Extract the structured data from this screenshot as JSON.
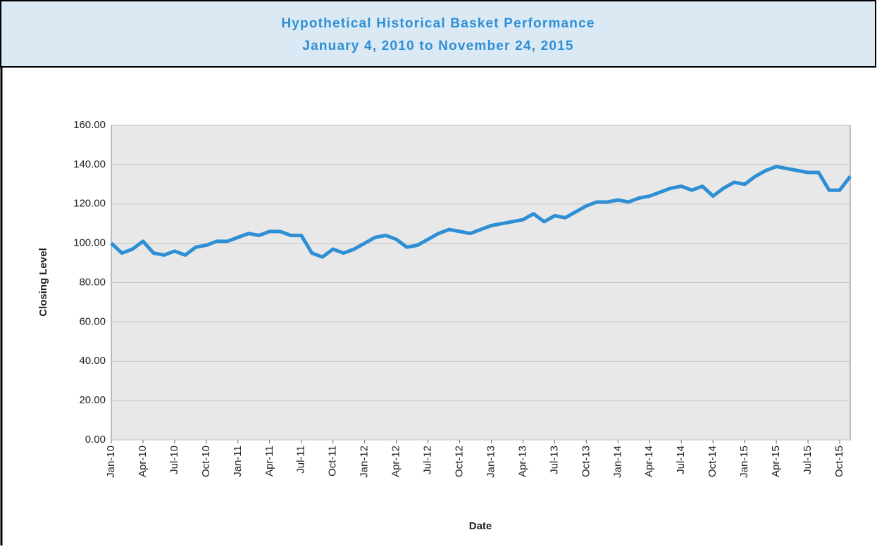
{
  "chart_data": {
    "type": "line",
    "title": "Hypothetical Historical Basket Performance",
    "subtitle": "January 4, 2010 to November 24, 2015",
    "x_label": "Date",
    "y_label": "Closing Level",
    "x": [
      "2010-01",
      "2010-02",
      "2010-03",
      "2010-04",
      "2010-05",
      "2010-06",
      "2010-07",
      "2010-08",
      "2010-09",
      "2010-10",
      "2010-11",
      "2010-12",
      "2011-01",
      "2011-02",
      "2011-03",
      "2011-04",
      "2011-05",
      "2011-06",
      "2011-07",
      "2011-08",
      "2011-09",
      "2011-10",
      "2011-11",
      "2011-12",
      "2012-01",
      "2012-02",
      "2012-03",
      "2012-04",
      "2012-05",
      "2012-06",
      "2012-07",
      "2012-08",
      "2012-09",
      "2012-10",
      "2012-11",
      "2012-12",
      "2013-01",
      "2013-02",
      "2013-03",
      "2013-04",
      "2013-05",
      "2013-06",
      "2013-07",
      "2013-08",
      "2013-09",
      "2013-10",
      "2013-11",
      "2013-12",
      "2014-01",
      "2014-02",
      "2014-03",
      "2014-04",
      "2014-05",
      "2014-06",
      "2014-07",
      "2014-08",
      "2014-09",
      "2014-10",
      "2014-11",
      "2014-12",
      "2015-01",
      "2015-02",
      "2015-03",
      "2015-04",
      "2015-05",
      "2015-06",
      "2015-07",
      "2015-08",
      "2015-09",
      "2015-10",
      "2015-11"
    ],
    "series": [
      {
        "name": "Basket",
        "color": "#2e8fd5",
        "values": [
          100,
          95,
          97,
          101,
          95,
          94,
          96,
          94,
          98,
          99,
          101,
          101,
          103,
          105,
          104,
          106,
          106,
          104,
          104,
          95,
          93,
          97,
          95,
          97,
          100,
          103,
          104,
          102,
          98,
          99,
          102,
          105,
          107,
          106,
          105,
          107,
          109,
          110,
          111,
          112,
          115,
          111,
          114,
          113,
          116,
          119,
          121,
          121,
          122,
          121,
          123,
          124,
          126,
          128,
          129,
          127,
          129,
          124,
          128,
          131,
          130,
          134,
          137,
          139,
          138,
          137,
          136,
          136,
          127,
          127,
          134
        ]
      }
    ],
    "xlim": [
      "2010-01",
      "2015-11"
    ],
    "xticks": [
      {
        "value": "2010-01",
        "label": "Jan-10"
      },
      {
        "value": "2010-04",
        "label": "Apr-10"
      },
      {
        "value": "2010-07",
        "label": "Jul-10"
      },
      {
        "value": "2010-10",
        "label": "Oct-10"
      },
      {
        "value": "2011-01",
        "label": "Jan-11"
      },
      {
        "value": "2011-04",
        "label": "Apr-11"
      },
      {
        "value": "2011-07",
        "label": "Jul-11"
      },
      {
        "value": "2011-10",
        "label": "Oct-11"
      },
      {
        "value": "2012-01",
        "label": "Jan-12"
      },
      {
        "value": "2012-04",
        "label": "Apr-12"
      },
      {
        "value": "2012-07",
        "label": "Jul-12"
      },
      {
        "value": "2012-10",
        "label": "Oct-12"
      },
      {
        "value": "2013-01",
        "label": "Jan-13"
      },
      {
        "value": "2013-04",
        "label": "Apr-13"
      },
      {
        "value": "2013-07",
        "label": "Jul-13"
      },
      {
        "value": "2013-10",
        "label": "Oct-13"
      },
      {
        "value": "2014-01",
        "label": "Jan-14"
      },
      {
        "value": "2014-04",
        "label": "Apr-14"
      },
      {
        "value": "2014-07",
        "label": "Jul-14"
      },
      {
        "value": "2014-10",
        "label": "Oct-14"
      },
      {
        "value": "2015-01",
        "label": "Jan-15"
      },
      {
        "value": "2015-04",
        "label": "Apr-15"
      },
      {
        "value": "2015-07",
        "label": "Jul-15"
      },
      {
        "value": "2015-10",
        "label": "Oct-15"
      }
    ],
    "ylim": [
      0,
      160
    ],
    "yticks": [
      {
        "value": 0,
        "label": "0.00"
      },
      {
        "value": 20,
        "label": "20.00"
      },
      {
        "value": 40,
        "label": "40.00"
      },
      {
        "value": 60,
        "label": "60.00"
      },
      {
        "value": 80,
        "label": "80.00"
      },
      {
        "value": 100,
        "label": "100.00"
      },
      {
        "value": 120,
        "label": "120.00"
      },
      {
        "value": 140,
        "label": "140.00"
      },
      {
        "value": 160,
        "label": "160.00"
      }
    ],
    "grid": true
  }
}
